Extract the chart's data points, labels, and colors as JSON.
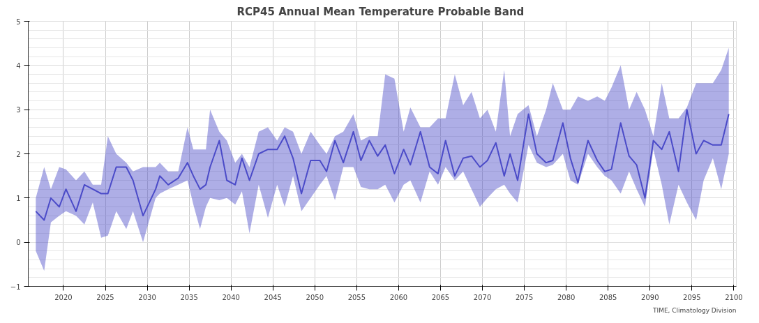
{
  "chart_data": {
    "type": "line",
    "title": "RCP45  Annual Mean Temperature Probable Band",
    "annotations": [
      "TIME, Climatology Division"
    ],
    "x": [
      2016.7,
      2017.7,
      2018.5,
      2019.5,
      2020.3,
      2021.5,
      2022.5,
      2023.5,
      2024.5,
      2025.3,
      2026.3,
      2027.5,
      2028.3,
      2029.5,
      2031.0,
      2031.5,
      2032.5,
      2033.7,
      2034.8,
      2035.5,
      2036.3,
      2037.0,
      2037.5,
      2038.6,
      2039.5,
      2040.5,
      2041.3,
      2042.2,
      2043.3,
      2044.4,
      2045.5,
      2046.4,
      2047.4,
      2048.4,
      2049.5,
      2050.6,
      2051.4,
      2052.4,
      2053.4,
      2054.6,
      2055.5,
      2056.5,
      2057.5,
      2058.4,
      2059.5,
      2060.6,
      2061.4,
      2062.6,
      2063.7,
      2064.7,
      2065.6,
      2066.7,
      2067.7,
      2068.7,
      2069.7,
      2070.6,
      2071.6,
      2072.6,
      2073.3,
      2074.2,
      2075.5,
      2076.5,
      2077.6,
      2078.4,
      2079.6,
      2080.5,
      2081.4,
      2082.6,
      2083.7,
      2084.6,
      2085.4,
      2086.5,
      2087.5,
      2088.4,
      2089.4,
      2090.4,
      2091.4,
      2092.3,
      2093.4,
      2094.4,
      2095.5,
      2096.4,
      2097.5,
      2098.5,
      2099.4
    ],
    "series": [
      {
        "color": "#4b4bc8",
        "values": [
          0.7,
          0.5,
          1.0,
          0.8,
          1.2,
          0.7,
          1.3,
          1.2,
          1.1,
          1.1,
          1.7,
          1.7,
          1.4,
          0.6,
          1.2,
          1.5,
          1.3,
          1.45,
          1.8,
          1.5,
          1.2,
          1.3,
          1.7,
          2.3,
          1.4,
          1.3,
          1.9,
          1.4,
          2.0,
          2.1,
          2.1,
          2.4,
          1.9,
          1.1,
          1.85,
          1.85,
          1.6,
          2.3,
          1.8,
          2.5,
          1.85,
          2.3,
          1.95,
          2.2,
          1.55,
          2.1,
          1.75,
          2.5,
          1.7,
          1.55,
          2.3,
          1.5,
          1.9,
          1.95,
          1.7,
          1.85,
          2.25,
          1.5,
          2.0,
          1.4,
          2.9,
          2.0,
          1.8,
          1.85,
          2.7,
          1.9,
          1.35,
          2.3,
          1.85,
          1.6,
          1.65,
          2.7,
          1.95,
          1.75,
          1.0,
          2.3,
          2.1,
          2.5,
          1.6,
          3.0,
          2.0,
          2.3,
          2.2,
          2.2,
          2.9
        ],
        "lower": [
          -0.2,
          -0.65,
          0.45,
          0.6,
          0.7,
          0.6,
          0.4,
          0.9,
          0.1,
          0.15,
          0.7,
          0.3,
          0.7,
          0.0,
          1.0,
          1.1,
          1.2,
          1.3,
          1.4,
          0.85,
          0.3,
          0.8,
          1.0,
          0.95,
          1.0,
          0.85,
          1.15,
          0.2,
          1.3,
          0.55,
          1.3,
          0.8,
          1.5,
          0.7,
          1.0,
          1.3,
          1.5,
          0.95,
          1.7,
          1.7,
          1.25,
          1.2,
          1.2,
          1.3,
          0.9,
          1.3,
          1.4,
          0.9,
          1.6,
          1.3,
          1.7,
          1.4,
          1.6,
          1.2,
          0.8,
          1.0,
          1.2,
          1.3,
          1.1,
          0.9,
          2.2,
          1.8,
          1.7,
          1.75,
          2.0,
          1.4,
          1.3,
          2.0,
          1.7,
          1.5,
          1.4,
          1.1,
          1.6,
          1.2,
          0.8,
          2.1,
          1.3,
          0.4,
          1.3,
          0.9,
          0.5,
          1.4,
          1.9,
          1.2,
          2.0
        ],
        "upper": [
          1.0,
          1.7,
          1.2,
          1.7,
          1.65,
          1.4,
          1.6,
          1.3,
          1.3,
          2.4,
          2.0,
          1.8,
          1.6,
          1.7,
          1.7,
          1.8,
          1.6,
          1.6,
          2.6,
          2.1,
          2.1,
          2.1,
          3.0,
          2.5,
          2.3,
          1.8,
          2.0,
          1.7,
          2.5,
          2.6,
          2.3,
          2.6,
          2.5,
          2.0,
          2.5,
          2.2,
          2.0,
          2.4,
          2.5,
          2.9,
          2.3,
          2.4,
          2.4,
          3.8,
          3.7,
          2.5,
          3.05,
          2.6,
          2.6,
          2.8,
          2.8,
          3.8,
          3.1,
          3.4,
          2.8,
          3.0,
          2.5,
          3.9,
          2.4,
          2.9,
          3.1,
          2.4,
          3.0,
          3.6,
          3.0,
          3.0,
          3.3,
          3.2,
          3.3,
          3.2,
          3.5,
          4.0,
          3.0,
          3.4,
          3.0,
          2.4,
          3.6,
          2.8,
          2.8,
          3.05,
          3.6,
          3.6,
          3.6,
          3.9,
          4.4
        ]
      }
    ],
    "xlim": [
      2015.8,
      2100.3
    ],
    "ylim": [
      -1,
      5
    ],
    "xticks": [
      2020,
      2025,
      2030,
      2035,
      2040,
      2045,
      2050,
      2055,
      2060,
      2065,
      2070,
      2075,
      2080,
      2085,
      2090,
      2095,
      2100
    ],
    "yticks": [
      -1,
      0,
      1,
      2,
      3,
      4,
      5
    ],
    "grid": true,
    "line_style": "solid",
    "marker": "none"
  }
}
